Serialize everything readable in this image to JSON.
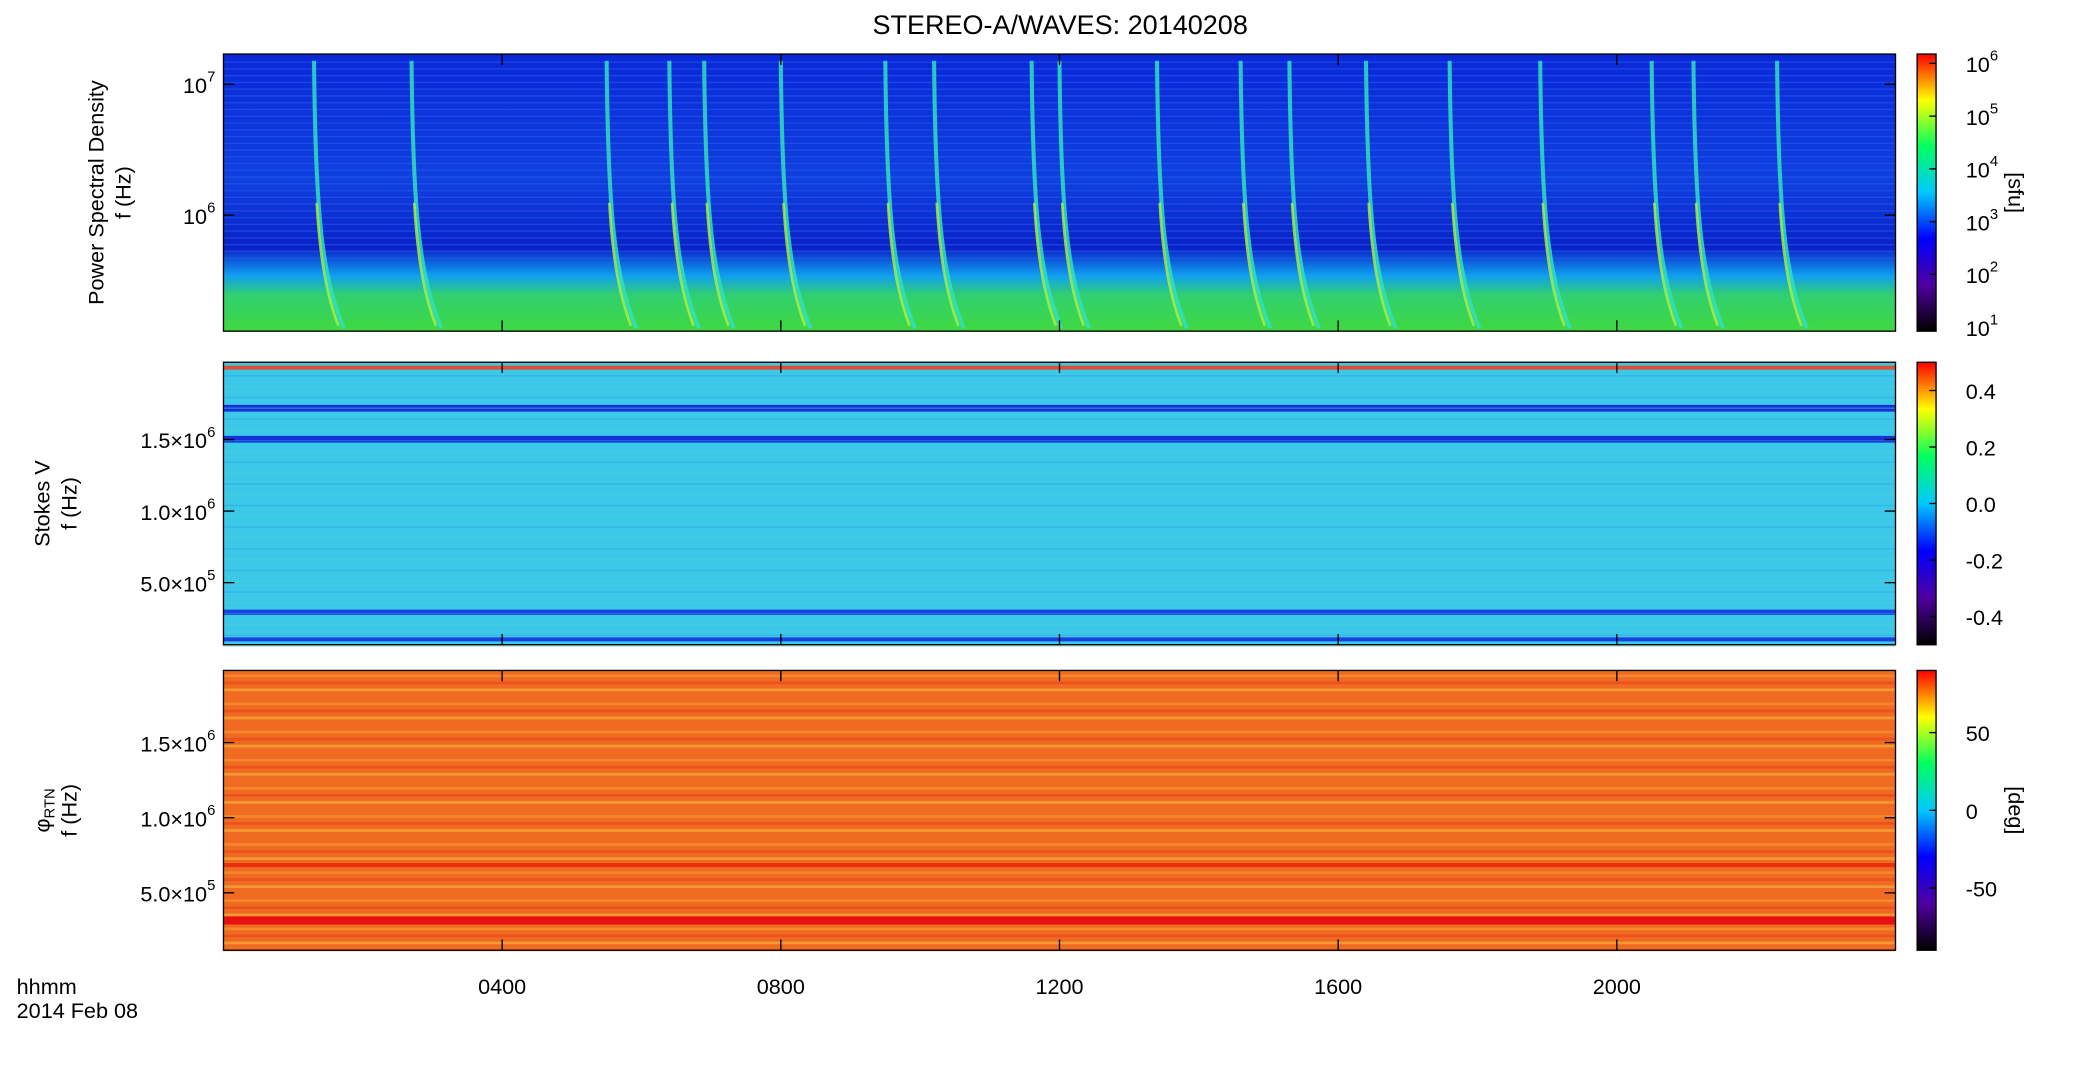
{
  "title": "STEREO-A/WAVES: 20140208",
  "xaxis": {
    "xlim": [
      0,
      24
    ],
    "xticks": [
      {
        "value": 4,
        "label": "0400"
      },
      {
        "value": 8,
        "label": "0800"
      },
      {
        "value": 12,
        "label": "1200"
      },
      {
        "value": 16,
        "label": "1600"
      },
      {
        "value": 20,
        "label": "2000"
      }
    ],
    "label": "hhmm",
    "date": "2014 Feb 08"
  },
  "chart_data": [
    {
      "type": "spectrogram",
      "ylabel": [
        "Power Spectral Density",
        "f (Hz)"
      ],
      "ylog": true,
      "ylim": [
        130000,
        17000000
      ],
      "yticks": [
        {
          "value": 1000000,
          "label": "10^6"
        },
        {
          "value": 10000000,
          "label": "10^7"
        }
      ],
      "colorbar": {
        "log": true,
        "lim": [
          8.4,
          1500000
        ],
        "ticks": [
          {
            "value": 10,
            "label": "10^1"
          },
          {
            "value": 100,
            "label": "10^2"
          },
          {
            "value": 1000,
            "label": "10^3"
          },
          {
            "value": 10000,
            "label": "10^4"
          },
          {
            "value": 100000,
            "label": "10^5"
          },
          {
            "value": 1000000,
            "label": "10^6"
          }
        ],
        "label": "[sfu]"
      },
      "colormap": [
        "#000000",
        "#5000a0",
        "#0000ff",
        "#00c8ff",
        "#00ff60",
        "#ffff00",
        "#ff0000"
      ],
      "bursts": [
        1.3,
        2.7,
        5.5,
        6.4,
        6.9,
        8.0,
        9.5,
        10.2,
        11.6,
        12.0,
        13.4,
        14.6,
        15.3,
        16.4,
        17.6,
        18.9,
        20.5,
        21.1,
        22.3
      ]
    },
    {
      "type": "spectrogram",
      "ylabel": [
        "Stokes V",
        "f (Hz)"
      ],
      "ylog": false,
      "ylim": [
        66000,
        2040000
      ],
      "yticks": [
        {
          "value": 500000,
          "label": "5.0×10^5"
        },
        {
          "value": 1000000,
          "label": "1.0×10^6"
        },
        {
          "value": 1500000,
          "label": "1.5×10^6"
        }
      ],
      "colorbar": {
        "log": false,
        "lim": [
          -0.5,
          0.5
        ],
        "ticks": [
          -0.4,
          -0.2,
          {
            "value": 0,
            "label": "0.0"
          },
          0.2,
          0.4
        ]
      },
      "colormap": [
        "#000000",
        "#5000a0",
        "#0000ff",
        "#00c8ff",
        "#00ff60",
        "#ffff00",
        "#ff0000"
      ]
    },
    {
      "type": "spectrogram",
      "ylabel": [
        "φ_RTN",
        "f (Hz)"
      ],
      "ylog": false,
      "ylim": [
        118000,
        1980000
      ],
      "yticks": [
        {
          "value": 500000,
          "label": "5.0×10^5"
        },
        {
          "value": 1000000,
          "label": "1.0×10^6"
        },
        {
          "value": 1500000,
          "label": "1.5×10^6"
        }
      ],
      "colorbar": {
        "log": false,
        "lim": [
          -90,
          90
        ],
        "ticks": [
          -50,
          0,
          50
        ],
        "label": "[deg]"
      },
      "colormap": [
        "#000000",
        "#5000a0",
        "#0000ff",
        "#00c8ff",
        "#00ff60",
        "#ffff00",
        "#ff0000"
      ]
    }
  ]
}
